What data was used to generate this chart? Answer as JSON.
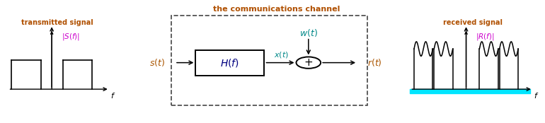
{
  "fig_width": 7.7,
  "fig_height": 1.74,
  "dpi": 100,
  "left_title": "transmitted signal",
  "right_title": "received signal",
  "channel_title": "the communications channel",
  "colors": {
    "title_text": "#b05000",
    "ylabel_left": "#cc00cc",
    "ylabel_right": "#cc00cc",
    "dashed_box": "#444444",
    "cyan_fill": "#00e5ff",
    "wt_color": "#008888",
    "xt_color": "#008888",
    "rt_color": "#aa5500",
    "st_color": "#aa5500",
    "Hf_color": "#000080"
  }
}
